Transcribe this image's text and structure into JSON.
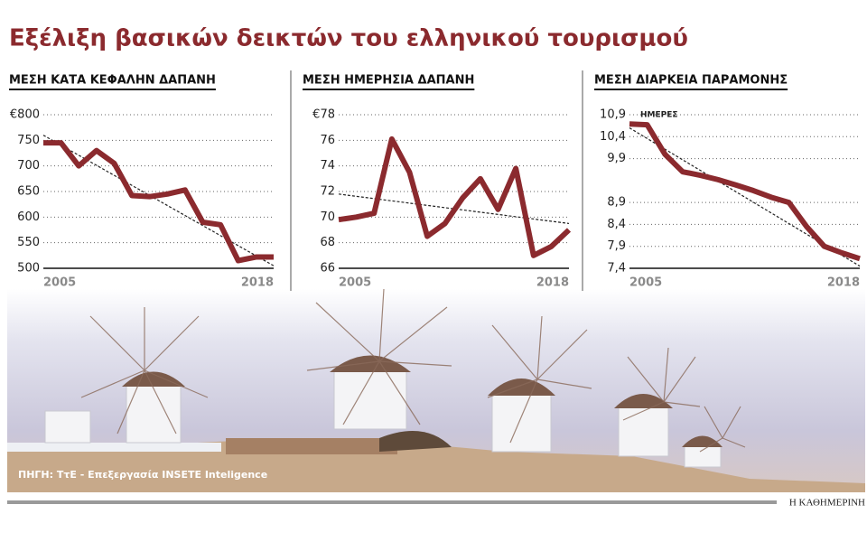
{
  "title": "Εξέλιξη βασικών δεικτών του ελληνικού τουρισμού",
  "source": "ΠΗΓΗ: ΤτΕ - Επεξεργασία INSETE Inteligence",
  "publisher": "Η ΚΑΘΗΜΕΡΙΝΗ",
  "chart_data": [
    {
      "type": "line",
      "title": "ΜΕΣΗ ΚΑΤΑ ΚΕΦΑΛΗΝ ΔΑΠΑΝΗ",
      "x": [
        2005,
        2006,
        2007,
        2008,
        2009,
        2010,
        2011,
        2012,
        2013,
        2014,
        2015,
        2016,
        2017,
        2018
      ],
      "xlim": [
        2005,
        2018
      ],
      "xticks": [
        2005,
        2018
      ],
      "series": [
        {
          "color": "#8b2a2e",
          "values": [
            745,
            745,
            700,
            730,
            705,
            642,
            640,
            645,
            653,
            590,
            585,
            515,
            522,
            522
          ]
        }
      ],
      "trend": [
        760,
        505
      ],
      "ylim": [
        500,
        800
      ],
      "yticks": [
        500,
        550,
        600,
        650,
        700,
        750,
        {
          "value": 800,
          "label": "€800"
        }
      ],
      "grid": true
    },
    {
      "type": "line",
      "title": "ΜΕΣΗ ΗΜΕΡΗΣΙΑ ΔΑΠΑΝΗ",
      "x": [
        2005,
        2006,
        2007,
        2008,
        2009,
        2010,
        2011,
        2012,
        2013,
        2014,
        2015,
        2016,
        2017,
        2018
      ],
      "xlim": [
        2005,
        2018
      ],
      "xticks": [
        2005,
        2018
      ],
      "series": [
        {
          "color": "#8b2a2e",
          "values": [
            69.8,
            70.0,
            70.3,
            76.1,
            73.5,
            68.5,
            69.5,
            71.5,
            73.0,
            70.6,
            73.8,
            67.0,
            67.7,
            69.0
          ]
        }
      ],
      "trend": [
        71.8,
        69.5
      ],
      "ylim": [
        66,
        78
      ],
      "yticks": [
        66,
        68,
        70,
        72,
        74,
        76,
        {
          "value": 78,
          "label": "€78"
        }
      ],
      "grid": true
    },
    {
      "type": "line",
      "title": "ΜΕΣΗ ΔΙΑΡΚΕΙΑ ΠΑΡΑΜΟΝΗΣ",
      "annotation": "ΗΜΕΡΕΣ",
      "x": [
        2005,
        2006,
        2007,
        2008,
        2009,
        2010,
        2011,
        2012,
        2013,
        2014,
        2015,
        2016,
        2017,
        2018
      ],
      "xlim": [
        2005,
        2018
      ],
      "xticks": [
        2005,
        2018
      ],
      "series": [
        {
          "color": "#8b2a2e",
          "values": [
            10.69,
            10.67,
            10.0,
            9.6,
            9.52,
            9.42,
            9.3,
            9.17,
            9.02,
            8.9,
            8.35,
            7.9,
            7.75,
            7.62
          ]
        }
      ],
      "trend": [
        10.6,
        7.45
      ],
      "ylim": [
        7.4,
        10.9
      ],
      "yticks": [
        {
          "value": 7.4,
          "label": "7,4"
        },
        {
          "value": 7.9,
          "label": "7,9"
        },
        {
          "value": 8.4,
          "label": "8,4"
        },
        {
          "value": 8.9,
          "label": "8,9"
        },
        {
          "value": 9.9,
          "label": "9,9"
        },
        {
          "value": 10.4,
          "label": "10,4"
        },
        {
          "value": 10.9,
          "label": "10,9"
        }
      ],
      "grid": true
    }
  ]
}
